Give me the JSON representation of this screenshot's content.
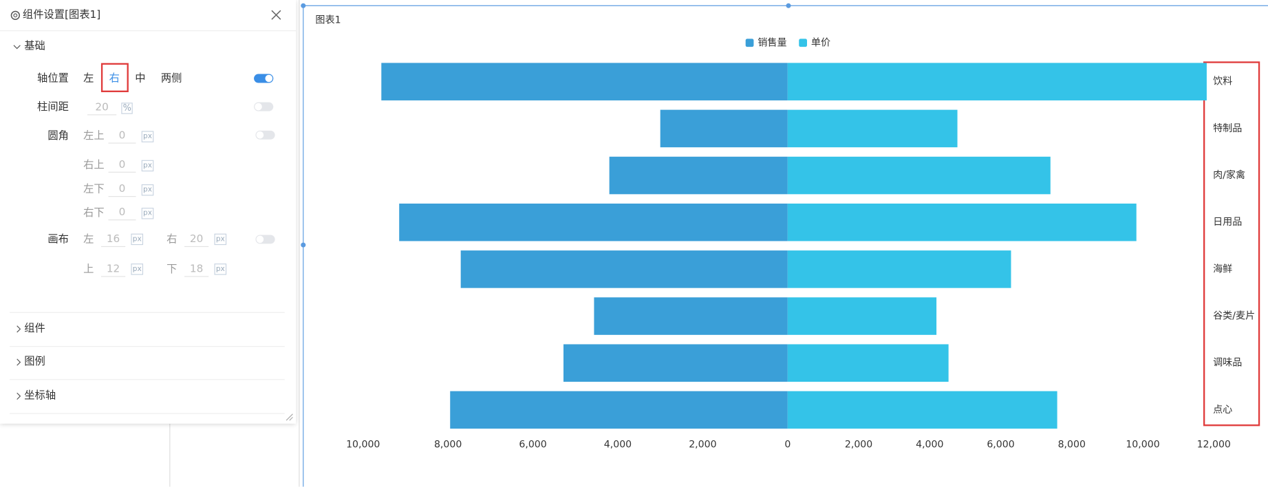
{
  "panel": {
    "title": "组件设置[图表1]",
    "section": "基础",
    "axis_position": {
      "label": "轴位置",
      "options": [
        "左",
        "右",
        "中",
        "两侧"
      ]
    },
    "bar_gap": {
      "label": "柱间距",
      "value": 20,
      "unit": "%"
    },
    "radius": {
      "label": "圆角",
      "fields": [
        {
          "label": "左上",
          "value": 0,
          "unit": "px"
        },
        {
          "label": "右上",
          "value": 0,
          "unit": "px"
        },
        {
          "label": "左下",
          "value": 0,
          "unit": "px"
        },
        {
          "label": "右下",
          "value": 0,
          "unit": "px"
        }
      ]
    },
    "canvas": {
      "label": "画布",
      "fields": [
        {
          "label": "左",
          "value": 16,
          "unit": "px"
        },
        {
          "label": "右",
          "value": 20,
          "unit": "px"
        },
        {
          "label": "上",
          "value": 12,
          "unit": "px"
        },
        {
          "label": "下",
          "value": 18,
          "unit": "px"
        }
      ]
    },
    "collapsed": [
      "组件",
      "图例",
      "坐标轴"
    ]
  },
  "chart_data": {
    "type": "butterfly-bar",
    "title": "图表1",
    "categories": [
      "饮料",
      "特制品",
      "肉/家禽",
      "日用品",
      "海鲜",
      "谷类/麦片",
      "调味品",
      "点心"
    ],
    "series": [
      {
        "name": "销售量",
        "color": "#3a9fd8",
        "values": [
          9570,
          3000,
          4200,
          9150,
          7700,
          4560,
          5280,
          7950
        ]
      },
      {
        "name": "单价",
        "color": "#34c3e8",
        "values": [
          11800,
          4780,
          7400,
          9820,
          6290,
          4190,
          4530,
          7590
        ]
      }
    ],
    "xlim": [
      0,
      10000
    ],
    "xticks": [
      {
        "value": 10000,
        "label": "10,000"
      },
      {
        "value": 8000,
        "label": "8,000"
      },
      {
        "value": 6000,
        "label": "6,000"
      },
      {
        "value": 4000,
        "label": "4,000"
      },
      {
        "value": 2000,
        "label": "2,000"
      },
      0
    ],
    "x2lim": [
      0,
      12000
    ],
    "x2ticks": [
      {
        "value": 2000,
        "label": "2,000"
      },
      {
        "value": 4000,
        "label": "4,000"
      },
      {
        "value": 6000,
        "label": "6,000"
      },
      {
        "value": 8000,
        "label": "8,000"
      },
      {
        "value": 10000,
        "label": "10,000"
      },
      {
        "value": 12000,
        "label": "12,000"
      }
    ]
  }
}
